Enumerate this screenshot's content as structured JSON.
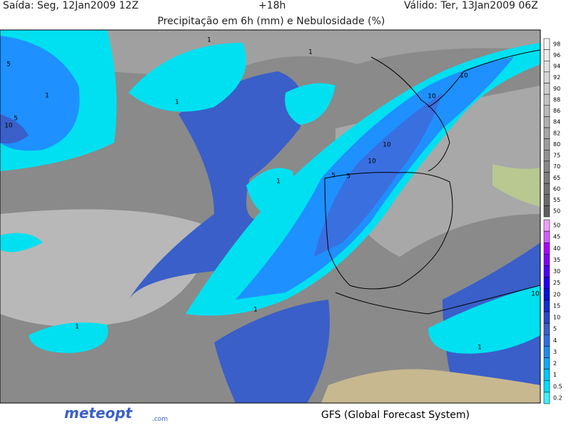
{
  "header": {
    "issued": "Saída: Seg, 12Jan2009 12Z",
    "lead": "+18h",
    "valid": "Válido: Ter, 13Jan2009 06Z",
    "title": "Precipitação em 6h (mm) e Nebulosidade (%)"
  },
  "cloud_scale": {
    "ticks": [
      98,
      96,
      94,
      92,
      90,
      88,
      86,
      84,
      82,
      80,
      75,
      70,
      65,
      60,
      55,
      50
    ],
    "colors": [
      "#f4f4f4",
      "#ececec",
      "#e2e2e2",
      "#d8d8d8",
      "#cecece",
      "#c4c4c4",
      "#bababa",
      "#b0b0b0",
      "#a6a6a6",
      "#9c9c9c",
      "#929292",
      "#888888",
      "#7e7e7e",
      "#747474",
      "#6a6a6a",
      "#606060"
    ]
  },
  "precip_scale": {
    "ticks": [
      50,
      45,
      40,
      35,
      30,
      25,
      20,
      15,
      10,
      5,
      4,
      3,
      2,
      1,
      0.5,
      0.2
    ],
    "colors": [
      "#f0a0ff",
      "#d060ff",
      "#b000ff",
      "#8000ff",
      "#5000ff",
      "#2000ff",
      "#0010e0",
      "#1030d0",
      "#2848c8",
      "#3a5fc8",
      "#2f6ee0",
      "#1e8cf0",
      "#10a8f8",
      "#00c8ff",
      "#00e0ff",
      "#40f0ff"
    ]
  },
  "contour_labels": [
    "5",
    "1",
    "1",
    "5",
    "10",
    "1",
    "10",
    "10",
    "10",
    "10",
    "5",
    "5",
    "1",
    "1",
    "1",
    "1",
    "1",
    "10"
  ],
  "footer": {
    "logo": "meteopt",
    "logo_suffix": ".com",
    "model": "GFS (Global Forecast System)"
  }
}
